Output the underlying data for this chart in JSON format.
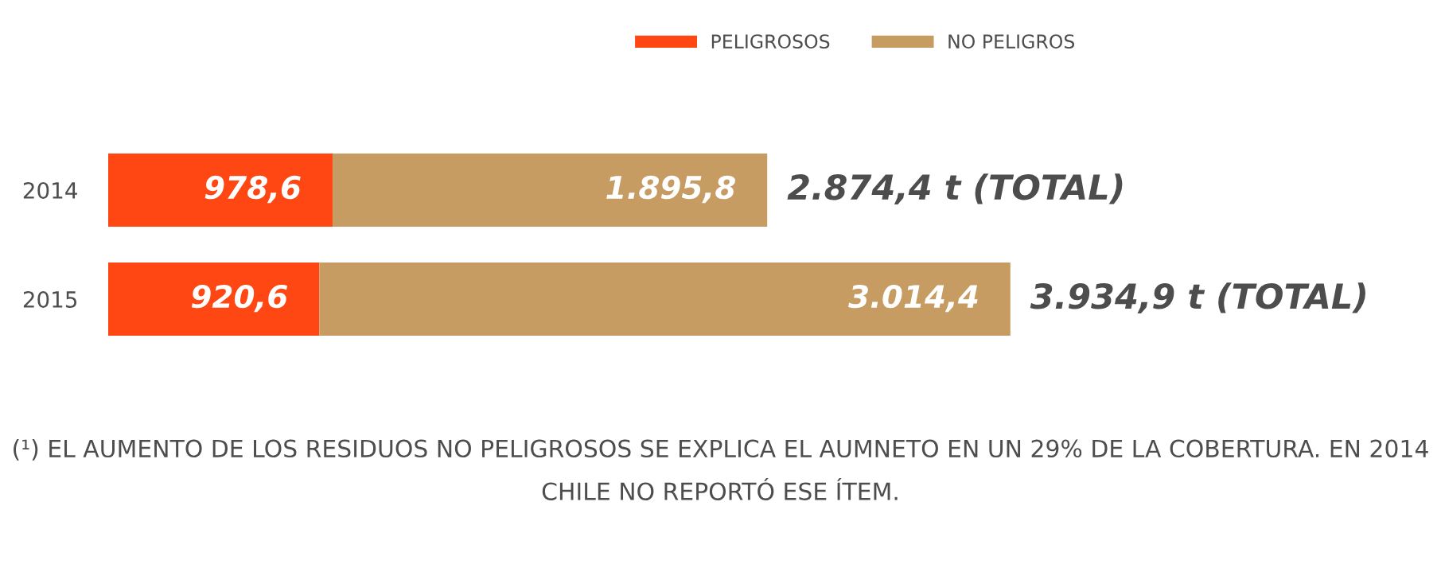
{
  "chart_data": {
    "type": "bar",
    "orientation": "horizontal",
    "stacked": true,
    "categories": [
      "2014",
      "2015"
    ],
    "series": [
      {
        "name": "PELIGROSOS",
        "color": "#ff4713",
        "values": [
          978.6,
          920.6
        ],
        "value_labels": [
          "978,6",
          "920,6"
        ]
      },
      {
        "name": "NO PELIGROS",
        "color": "#c69c62",
        "values": [
          1895.8,
          3014.4
        ],
        "value_labels": [
          "1.895,8",
          "3.014,4"
        ]
      }
    ],
    "totals": [
      "2.874,4 t (TOTAL)",
      "3.934,9 t (TOTAL)"
    ],
    "legend": "top",
    "tick_labels": "y",
    "annotations": [
      "(¹) EL AUMENTO DE LOS RESIDUOS NO PELIGROSOS SE EXPLICA EL AUMNETO EN UN 29% DE LA COBERTURA. EN 2014 CHILE NO REPORTÓ ESE ÍTEM."
    ]
  }
}
